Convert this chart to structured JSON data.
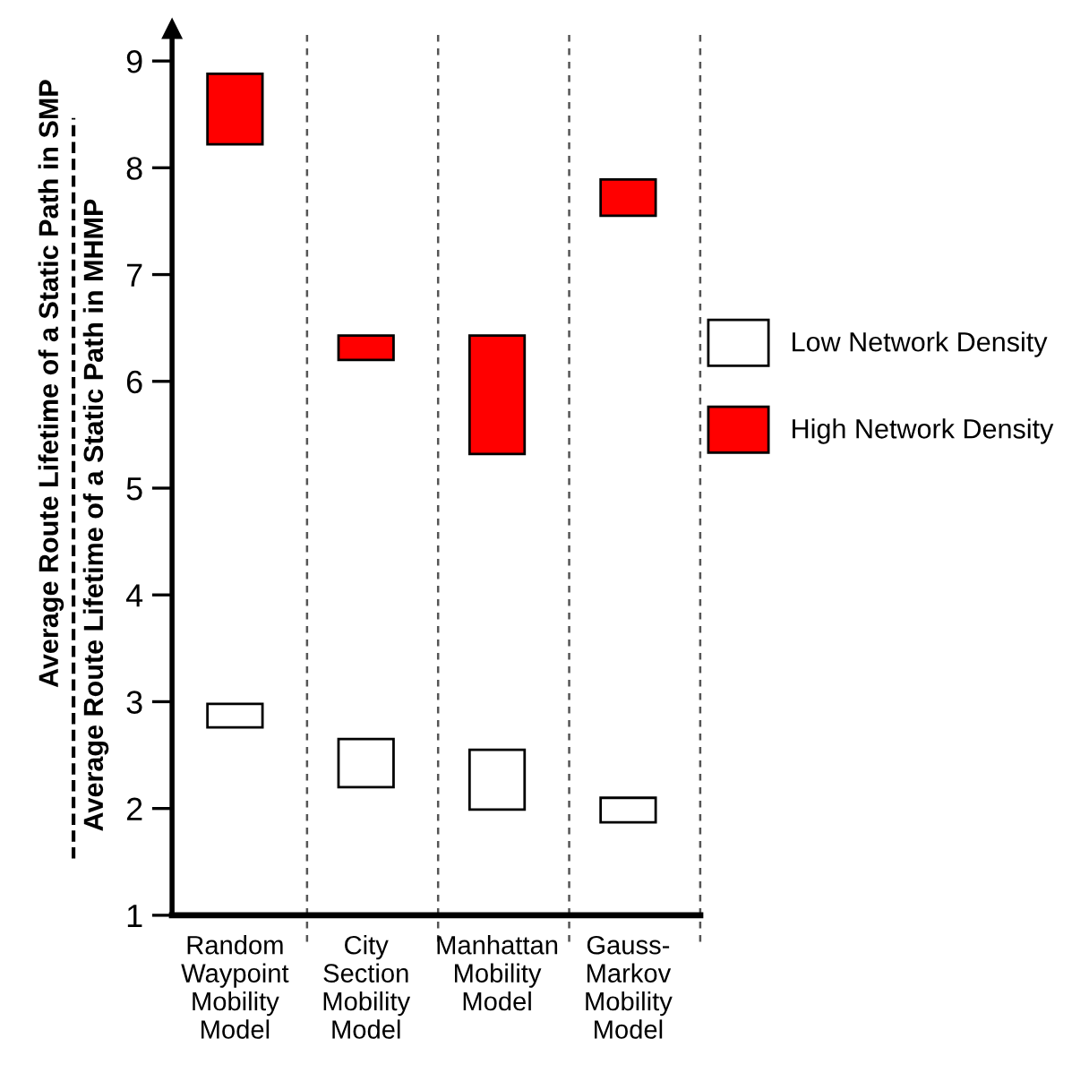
{
  "chart_data": {
    "type": "bar",
    "ylabel": "Average Route Lifetime of a Static Path in SMP",
    "annotations": [
      "Average Route Lifetime of a Static Path in MHMP"
    ],
    "categories": [
      "Random Waypoint Mobility Model",
      "City Section Mobility Model",
      "Manhattan Mobility Model",
      "Gauss-Markov Mobility Model"
    ],
    "series": [
      {
        "name": "Low Network Density",
        "color": "#ffffff",
        "base": [
          2.76,
          2.2,
          1.99,
          1.87
        ],
        "values": [
          0.22,
          0.45,
          0.56,
          0.23
        ]
      },
      {
        "name": "High Network Density",
        "color": "#ff0000",
        "base": [
          8.22,
          6.2,
          5.32,
          7.55
        ],
        "values": [
          0.66,
          0.23,
          1.11,
          0.34
        ]
      }
    ],
    "ylim": [
      1,
      9.3
    ],
    "yticks": [
      1,
      2,
      3,
      4,
      5,
      6,
      7,
      8,
      9
    ],
    "grid": "x",
    "legend": "right"
  }
}
